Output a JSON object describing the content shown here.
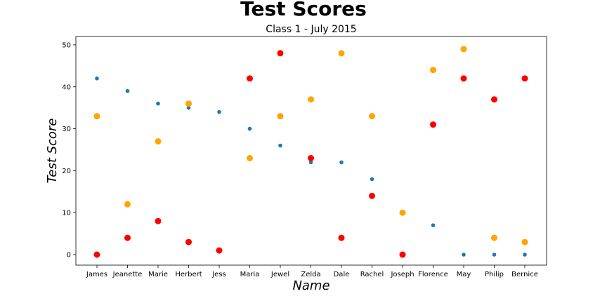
{
  "chart_data": {
    "type": "scatter",
    "title": "Test Scores",
    "subtitle": "Class 1 - July 2015",
    "xlabel": "Name",
    "ylabel": "Test Score",
    "categories": [
      "James",
      "Jeanette",
      "Marie",
      "Herbert",
      "Jess",
      "Maria",
      "Jewel",
      "Zelda",
      "Dale",
      "Rachel",
      "Joseph",
      "Florence",
      "May",
      "Philip",
      "Bernice"
    ],
    "ylim": [
      -2.5,
      52
    ],
    "yticks": [
      0,
      10,
      20,
      30,
      40,
      50
    ],
    "grid": false,
    "series": [
      {
        "color": "#1f77b4",
        "marker_size": "small",
        "values": [
          42,
          39,
          36,
          35,
          34,
          30,
          26,
          22,
          22,
          18,
          null,
          7,
          0,
          0,
          0
        ]
      },
      {
        "color": "#ffa500",
        "marker_size": "medium",
        "values": [
          33,
          12,
          27,
          36,
          null,
          23,
          33,
          37,
          48,
          33,
          10,
          44,
          49,
          4,
          3
        ]
      },
      {
        "color": "#ff0000",
        "marker_size": "medium",
        "values": [
          0,
          4,
          8,
          3,
          1,
          42,
          48,
          23,
          4,
          14,
          0,
          31,
          42,
          37,
          42
        ]
      }
    ]
  }
}
